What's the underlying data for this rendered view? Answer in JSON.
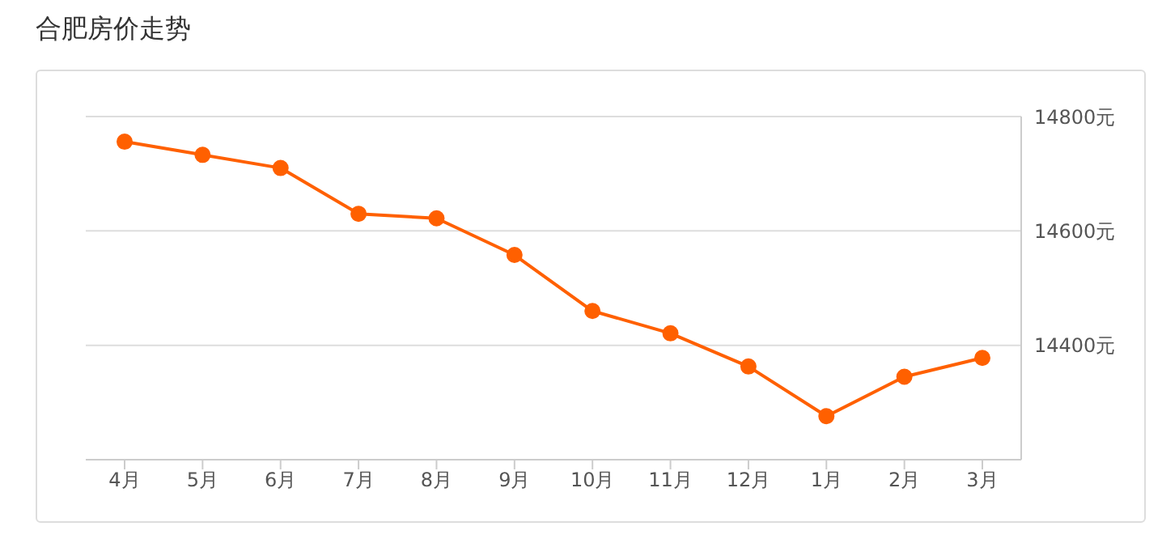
{
  "chart_data": {
    "type": "line",
    "title": "合肥房价走势",
    "categories": [
      "4月",
      "5月",
      "6月",
      "7月",
      "8月",
      "9月",
      "10月",
      "11月",
      "12月",
      "1月",
      "2月",
      "3月"
    ],
    "series": [
      {
        "color": "#ff6000",
        "values": [
          14756,
          14733,
          14710,
          14630,
          14622,
          14558,
          14460,
          14421,
          14363,
          14276,
          14345,
          14378
        ]
      }
    ],
    "ylim": [
      14200,
      14800
    ],
    "yticks": [
      {
        "value": 14400,
        "label": "14400元"
      },
      {
        "value": 14600,
        "label": "14600元"
      },
      {
        "value": 14800,
        "label": "14800元"
      }
    ],
    "grid": "y",
    "marker": "circle",
    "line_style": "solid",
    "legend": false
  }
}
